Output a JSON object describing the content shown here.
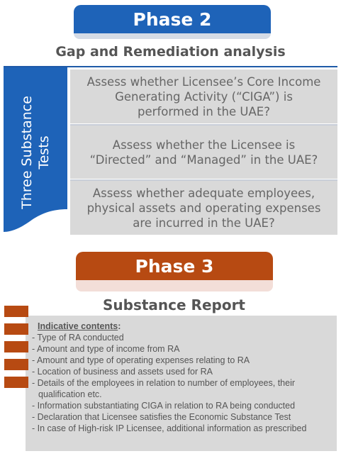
{
  "phase2": {
    "label": "Phase 2"
  },
  "gap_title": "Gap and Remediation analysis",
  "side_label": {
    "line1": "Three Substance",
    "line2": "Tests"
  },
  "tests": [
    {
      "line1": "Assess whether Licensee’s Core Income",
      "line2": "Generating Activity (“CIGA”) is",
      "line3": "performed in the UAE?"
    },
    {
      "line1": "Assess whether the Licensee is",
      "line2": "“Directed” and “Managed” in the UAE?"
    },
    {
      "line1": "Assess whether adequate employees,",
      "line2": "physical assets and operating expenses",
      "line3": "are incurred in the UAE?"
    }
  ],
  "phase3": {
    "label": "Phase 3"
  },
  "report_title": "Substance Report",
  "report": {
    "heading": "Indicative contents",
    "colon": ":",
    "items": [
      "- Type of RA conducted",
      "- Amount and type of income from RA",
      "- Amount and type of operating expenses relating to RA",
      "- Location of business and assets used for RA",
      "- Details of the employees in relation to number of employees, their qualification etc.",
      "- Information substantiating CIGA in relation to RA being conducted",
      "- Declaration that Licensee satisfies the Economic Substance Test",
      "- In case of High-risk IP Licensee, additional information as prescribed"
    ]
  },
  "colors": {
    "blue": "#1e63b8",
    "orange": "#b74a12",
    "box_gray": "#d9d9d9",
    "text_gray": "#666666"
  }
}
